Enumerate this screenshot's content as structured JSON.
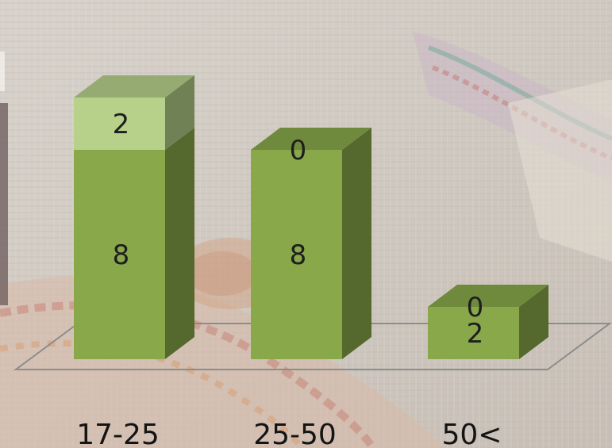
{
  "chart_data": {
    "type": "bar",
    "stacked": true,
    "three_d": true,
    "categories": [
      "17-25",
      "25-50",
      "50<"
    ],
    "series": [
      {
        "values": [
          8,
          8,
          2
        ],
        "color": "#89a84a"
      },
      {
        "values": [
          2,
          0,
          0
        ],
        "color": "#b7d08a"
      }
    ],
    "ylim": [
      0,
      10
    ],
    "grid": false,
    "legend": "none"
  }
}
